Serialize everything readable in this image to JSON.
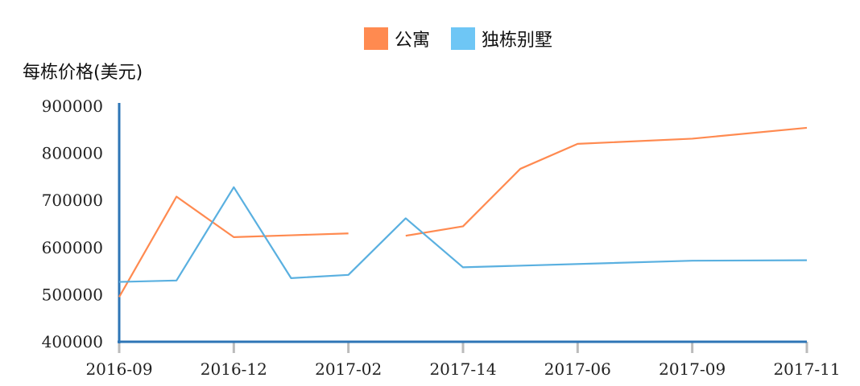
{
  "chart_data": {
    "type": "line",
    "ylabel": "每栋价格(美元)",
    "ylim": [
      400000,
      900000
    ],
    "yticks": [
      "900000",
      "800000",
      "700000",
      "600000",
      "500000",
      "400000"
    ],
    "categories": [
      "2016-09",
      "2016-12",
      "2017-02",
      "2017-14",
      "2017-06",
      "2017-09",
      "2017-11"
    ],
    "x": [
      0,
      0.5,
      1,
      1.5,
      2,
      2.5,
      3,
      3.5,
      4,
      5,
      6
    ],
    "series": [
      {
        "name": "公寓",
        "color": "#ff8a50",
        "values": [
          495000,
          708000,
          622000,
          626000,
          630000,
          625000,
          645000,
          767000,
          820000,
          831000,
          854000
        ],
        "breaks": [
          5
        ]
      },
      {
        "name": "独栋别墅",
        "color": "#5ab0e0",
        "legend_color": "#6ec6f5",
        "values": [
          527000,
          530000,
          728000,
          535000,
          542000,
          662000,
          558000,
          572000,
          573000
        ],
        "x": [
          0,
          0.5,
          1,
          1.5,
          2,
          2.5,
          3,
          5,
          6
        ]
      }
    ],
    "axis_color": "#2e75b6",
    "tick_color": "#bbbbbb"
  }
}
